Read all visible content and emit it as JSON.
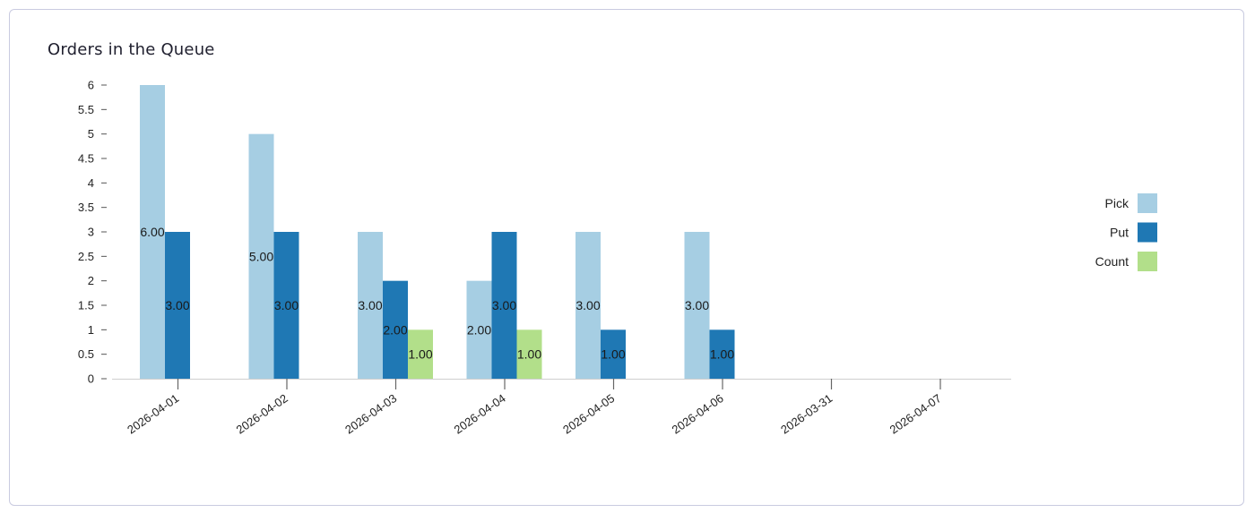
{
  "chart_data": {
    "type": "bar",
    "title": "Orders in the Queue",
    "categories": [
      "2026-04-01",
      "2026-04-02",
      "2026-04-03",
      "2026-04-04",
      "2026-04-05",
      "2026-04-06",
      "2026-03-31",
      "2026-04-07"
    ],
    "series": [
      {
        "name": "Pick",
        "color": "#a6cee3",
        "values": [
          6,
          5,
          3,
          2,
          3,
          3,
          null,
          null
        ]
      },
      {
        "name": "Put",
        "color": "#1f78b4",
        "values": [
          3,
          3,
          2,
          3,
          1,
          1,
          null,
          null
        ]
      },
      {
        "name": "Count",
        "color": "#b2df8a",
        "values": [
          null,
          null,
          1,
          1,
          null,
          null,
          null,
          null
        ]
      }
    ],
    "ylim": [
      0,
      6
    ],
    "yticks": [
      "0",
      "0.5",
      "1",
      "1.5",
      "2",
      "2.5",
      "3",
      "3.5",
      "4",
      "4.5",
      "5",
      "5.5",
      "6"
    ],
    "data_label_format": "2 decimals",
    "legend": "right",
    "grid": false
  }
}
